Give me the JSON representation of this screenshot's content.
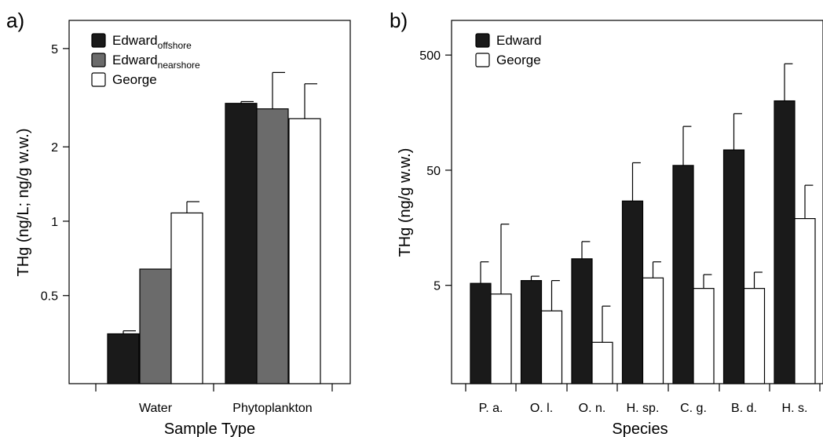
{
  "panels": [
    {
      "label": "a)",
      "chart_data": {
        "type": "bar",
        "title": "",
        "xlabel": "Sample Type",
        "ylabel": "THg (ng/L; ng/g w.w.)",
        "yscale": "log",
        "ylim": [
          0.22,
          6.5
        ],
        "yticks": [
          0.5,
          1,
          2,
          5
        ],
        "ytick_labels": [
          "0.5",
          "1",
          "2",
          "5"
        ],
        "categories": [
          "Water",
          "Phytoplankton"
        ],
        "series": [
          {
            "name": "Edward",
            "name_sub": "offshore",
            "color": "#1a1a1a",
            "values": [
              0.35,
              3.0
            ],
            "errors": [
              0.36,
              3.05
            ]
          },
          {
            "name": "Edward",
            "name_sub": "nearshore",
            "color": "#6b6b6b",
            "values": [
              0.64,
              2.85
            ],
            "errors": [
              null,
              4.0
            ]
          },
          {
            "name": "George",
            "name_sub": "",
            "color": "#ffffff",
            "values": [
              1.08,
              2.6
            ],
            "errors": [
              1.2,
              3.6
            ]
          }
        ],
        "legend_position": "top-left",
        "grid": false
      }
    },
    {
      "label": "b)",
      "chart_data": {
        "type": "bar",
        "title": "",
        "xlabel": "Species",
        "ylabel": "THg (ng/g w.w.)",
        "yscale": "log",
        "ylim": [
          0.7,
          1000
        ],
        "yticks": [
          5,
          50,
          500
        ],
        "ytick_labels": [
          "5",
          "50",
          "500"
        ],
        "categories": [
          "P. a.",
          "O. l.",
          "O. n.",
          "H. sp.",
          "C. g.",
          "B. d.",
          "H. s."
        ],
        "series": [
          {
            "name": "Edward",
            "name_sub": "",
            "color": "#1a1a1a",
            "values": [
              5.2,
              5.5,
              8.5,
              27,
              55,
              75,
              200
            ],
            "errors": [
              8.0,
              6.0,
              12.0,
              58,
              120,
              155,
              420
            ]
          },
          {
            "name": "George",
            "name_sub": "",
            "color": "#ffffff",
            "values": [
              4.2,
              3.0,
              1.6,
              5.8,
              4.7,
              4.7,
              19
            ],
            "errors": [
              17,
              5.5,
              3.3,
              8.0,
              6.2,
              6.5,
              37
            ]
          }
        ],
        "legend_position": "top-left",
        "grid": false
      }
    }
  ]
}
